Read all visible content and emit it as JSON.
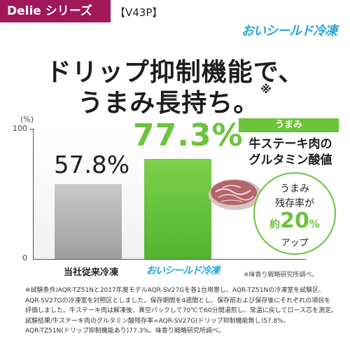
{
  "header": {
    "series_badge": "Delie シリーズ",
    "model": "【V43P】",
    "brand_logo": "おいシールド冷凍"
  },
  "headline": {
    "line1": "ドリップ抑制機能で、",
    "line2": "うまみ長持ち。",
    "note_mark": "※"
  },
  "chart_data": {
    "type": "bar",
    "categories": [
      "当社従来冷凍",
      "おいシールド冷凍"
    ],
    "values": [
      57.8,
      77.3
    ],
    "value_labels": [
      "57.8%",
      "77.3%"
    ],
    "ylabel_unit": "(%)",
    "ylim": [
      0,
      100
    ],
    "yticks": [
      "100",
      "0"
    ],
    "colors": [
      "#b0b0b0",
      "#62c03a"
    ]
  },
  "panel": {
    "tag": "うまみ",
    "metric_line1": "牛ステーキ肉の",
    "metric_line2": "グルタミン酸値",
    "badge_line1": "うまみ",
    "badge_line2": "残存率が",
    "badge_prefix": "約",
    "badge_value": "20",
    "badge_unit": "%",
    "badge_line4": "アップ",
    "source": "※味香り戦略研究所調べ。"
  },
  "footnote": [
    "※試験条件/AQR-TZ51Nと2017年度モデルAQR-SV27Gを各1台用意し、AQR-TZ51Nの冷凍室を試験区、",
    "AQR-SV27Gの冷凍室を対照区としました。保存期間を4週間とし、保存前および保存後にそれぞれの項目を",
    "評価しました。牛ステーキ肉は解凍後、真空パックして70℃で60分間湯煎し、常温に戻してロース芯を測定。",
    "試験結果/牛ステーキ肉のグルタミン酸残存率=AQR-SV27G(ドリップ抑制機能無し)57.8%、",
    "AQR-TZ51N(ドリップ抑制機能あり)77.3%。味香り戦略研究所調べ。"
  ]
}
